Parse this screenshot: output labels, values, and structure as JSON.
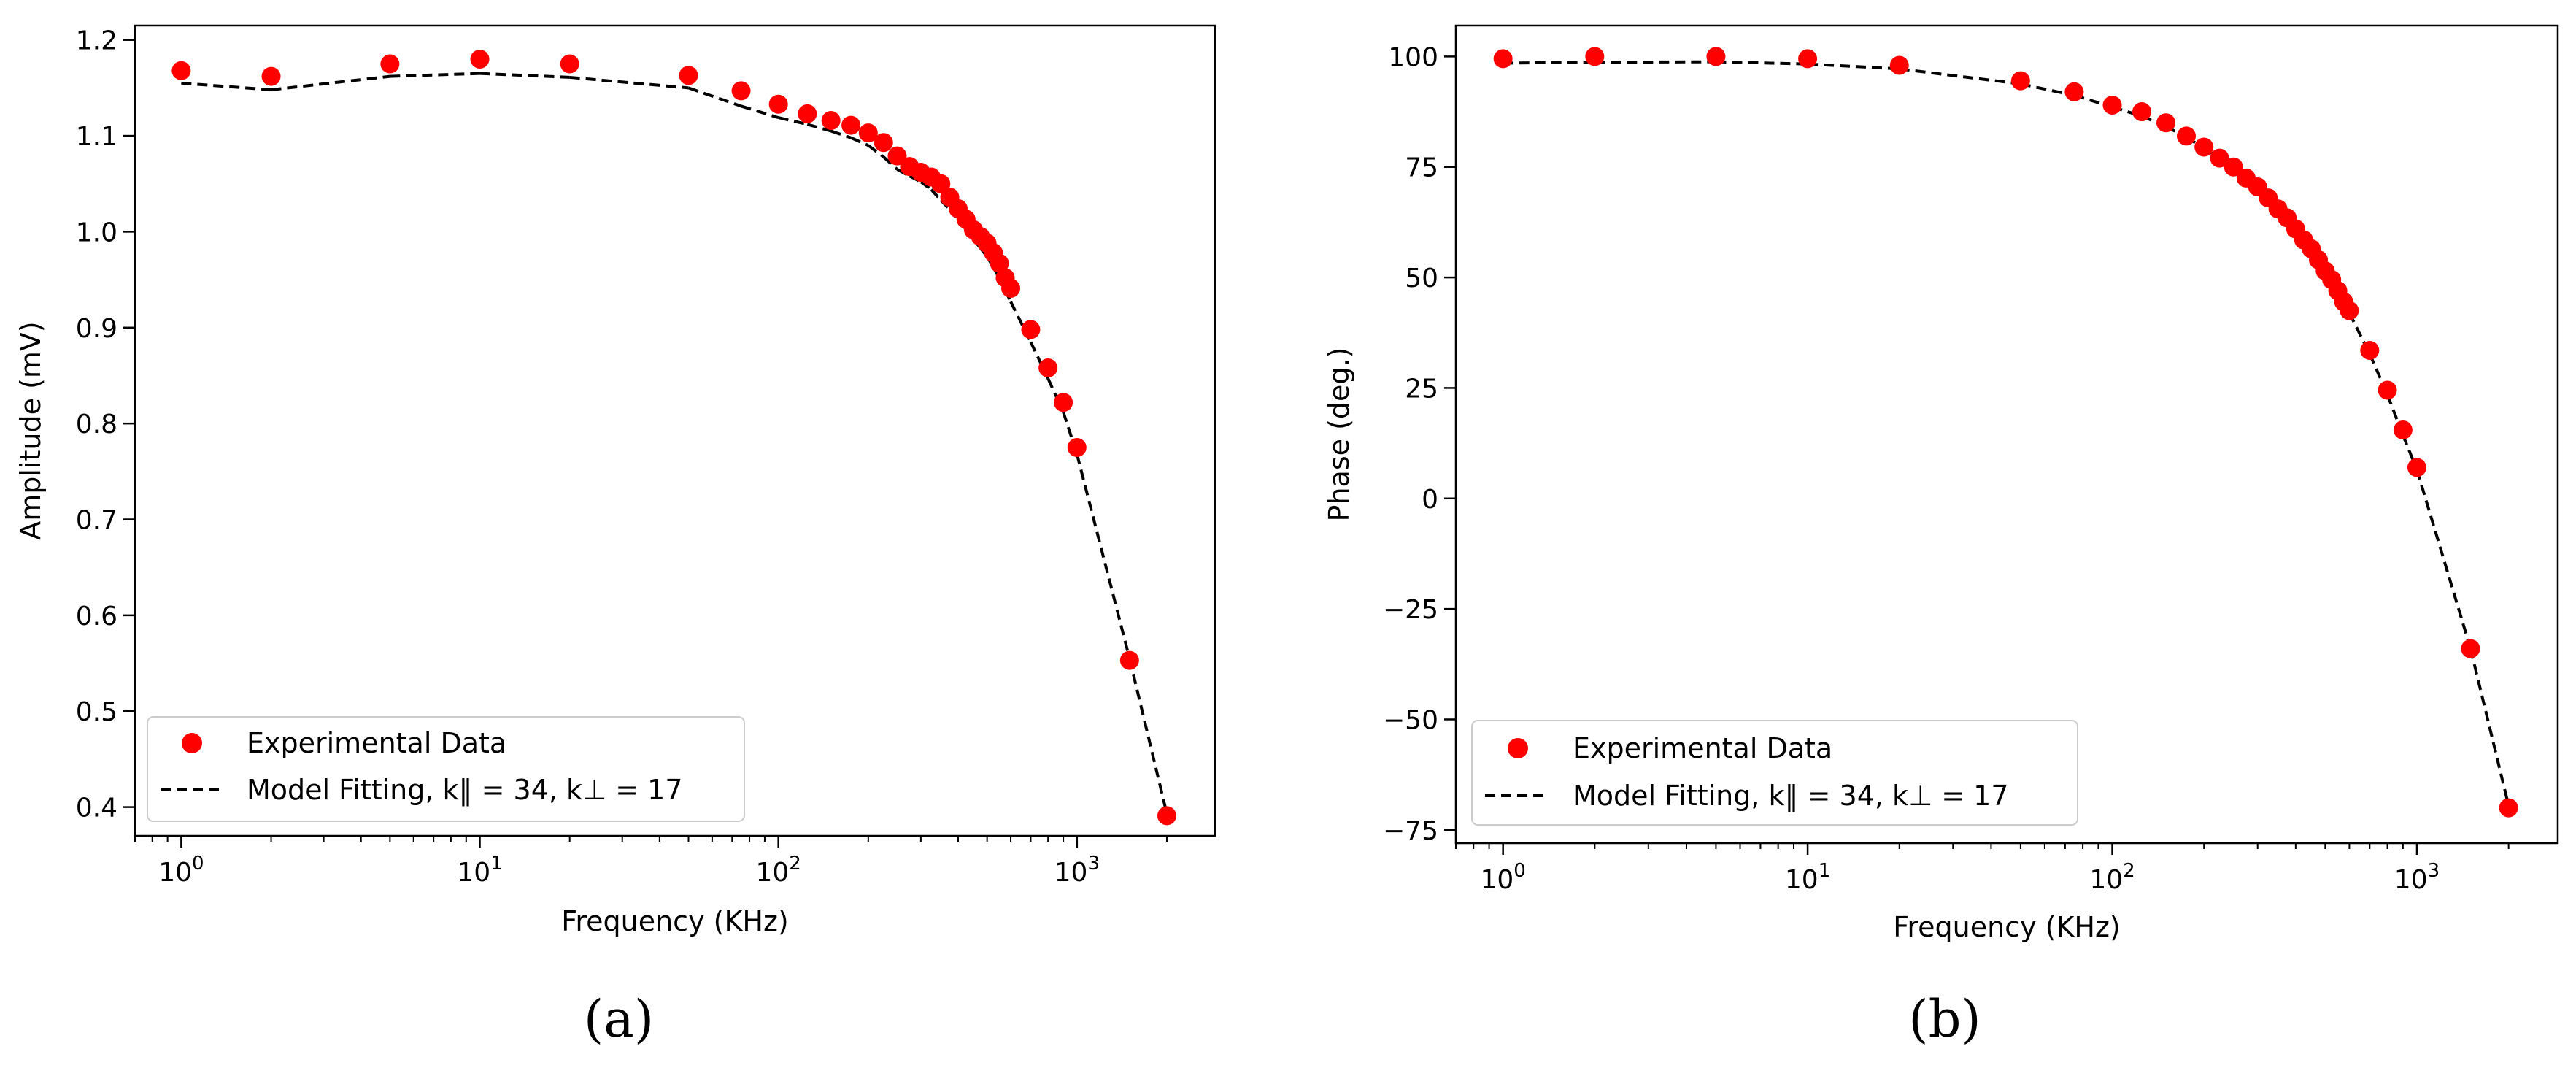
{
  "chart_data": [
    {
      "type": "scatter",
      "panel_label": "(a)",
      "xlabel": "Frequency (KHz)",
      "ylabel": "Amplitude (mV)",
      "xscale": "log",
      "xlim": [
        0.7,
        2900
      ],
      "ylim": [
        0.37,
        1.215
      ],
      "xticks": [
        1,
        10,
        100,
        1000
      ],
      "xtick_labels": [
        {
          "base": "10",
          "exp": "0"
        },
        {
          "base": "10",
          "exp": "1"
        },
        {
          "base": "10",
          "exp": "2"
        },
        {
          "base": "10",
          "exp": "3"
        }
      ],
      "yticks": [
        0.4,
        0.5,
        0.6,
        0.7,
        0.8,
        0.9,
        1.0,
        1.1,
        1.2
      ],
      "ytick_labels": [
        "0.4",
        "0.5",
        "0.6",
        "0.7",
        "0.8",
        "0.9",
        "1.0",
        "1.1",
        "1.2"
      ],
      "legend_position": "lower-left",
      "series": [
        {
          "name": "Experimental Data",
          "kind": "scatter",
          "color": "#ff0000",
          "x": [
            1,
            2,
            5,
            10,
            20,
            50,
            75,
            100,
            125,
            150,
            175,
            200,
            225,
            250,
            275,
            300,
            325,
            350,
            375,
            400,
            425,
            450,
            475,
            500,
            525,
            550,
            575,
            600,
            700,
            800,
            900,
            1000,
            1500,
            2000
          ],
          "y": [
            1.168,
            1.162,
            1.175,
            1.18,
            1.175,
            1.163,
            1.147,
            1.133,
            1.123,
            1.116,
            1.111,
            1.103,
            1.093,
            1.079,
            1.068,
            1.062,
            1.057,
            1.05,
            1.036,
            1.024,
            1.013,
            1.002,
            0.995,
            0.988,
            0.978,
            0.967,
            0.952,
            0.941,
            0.898,
            0.858,
            0.822,
            0.775,
            0.553,
            0.391
          ]
        },
        {
          "name": "Model Fitting, k‖ = 34, k⊥ = 17",
          "kind": "line",
          "style": "dashed",
          "color": "#000000",
          "x": [
            1,
            2,
            5,
            10,
            20,
            50,
            75,
            100,
            125,
            150,
            175,
            200,
            225,
            250,
            275,
            300,
            325,
            350,
            375,
            400,
            425,
            450,
            475,
            500,
            525,
            550,
            575,
            600,
            700,
            800,
            900,
            1000,
            1500,
            2000
          ],
          "y": [
            1.155,
            1.148,
            1.162,
            1.165,
            1.161,
            1.15,
            1.131,
            1.119,
            1.112,
            1.105,
            1.098,
            1.09,
            1.078,
            1.065,
            1.058,
            1.052,
            1.044,
            1.033,
            1.023,
            1.012,
            1.002,
            0.992,
            0.983,
            0.974,
            0.963,
            0.951,
            0.939,
            0.927,
            0.885,
            0.847,
            0.812,
            0.768,
            0.555,
            0.393
          ]
        }
      ]
    },
    {
      "type": "scatter",
      "panel_label": "(b)",
      "xlabel": "Frequency (KHz)",
      "ylabel": "Phase (deg.)",
      "xscale": "log",
      "xlim": [
        0.7,
        2900
      ],
      "ylim": [
        -78,
        107
      ],
      "xticks": [
        1,
        10,
        100,
        1000
      ],
      "xtick_labels": [
        {
          "base": "10",
          "exp": "0"
        },
        {
          "base": "10",
          "exp": "1"
        },
        {
          "base": "10",
          "exp": "2"
        },
        {
          "base": "10",
          "exp": "3"
        }
      ],
      "yticks": [
        -75,
        -50,
        -25,
        0,
        25,
        50,
        75,
        100
      ],
      "ytick_labels": [
        "−75",
        "−50",
        "−25",
        "0",
        "25",
        "50",
        "75",
        "100"
      ],
      "legend_position": "lower-left",
      "series": [
        {
          "name": "Experimental Data",
          "kind": "scatter",
          "color": "#ff0000",
          "x": [
            1,
            2,
            5,
            10,
            20,
            50,
            75,
            100,
            125,
            150,
            175,
            200,
            225,
            250,
            275,
            300,
            325,
            350,
            375,
            400,
            425,
            450,
            475,
            500,
            525,
            550,
            575,
            600,
            700,
            800,
            900,
            1000,
            1500,
            2000
          ],
          "y": [
            99.5,
            100,
            100,
            99.5,
            98,
            94.5,
            92,
            89,
            87.5,
            85,
            82,
            79.5,
            77,
            75,
            72.5,
            70.5,
            68,
            65.5,
            63.5,
            61,
            58.5,
            56.5,
            54,
            51.5,
            49.5,
            47,
            44.5,
            42.5,
            33.5,
            24.5,
            15.5,
            7,
            -34,
            -70
          ]
        },
        {
          "name": "Model Fitting, k‖ = 34, k⊥ = 17",
          "kind": "line",
          "style": "dashed",
          "color": "#000000",
          "x": [
            1,
            2,
            5,
            10,
            20,
            50,
            75,
            100,
            125,
            150,
            175,
            200,
            225,
            250,
            275,
            300,
            325,
            350,
            375,
            400,
            425,
            450,
            475,
            500,
            525,
            550,
            575,
            600,
            700,
            800,
            900,
            1000,
            1500,
            2000
          ],
          "y": [
            98.5,
            98.7,
            98.8,
            98.3,
            97.2,
            93.8,
            91.2,
            88.6,
            86.5,
            84.2,
            81.7,
            79.3,
            76.9,
            74.6,
            72.3,
            70,
            67.6,
            65.3,
            63,
            60.6,
            58.3,
            56,
            53.6,
            51.3,
            49,
            46.7,
            44.3,
            42,
            32.7,
            23.5,
            14.3,
            6.5,
            -34,
            -69.5
          ]
        }
      ]
    }
  ]
}
